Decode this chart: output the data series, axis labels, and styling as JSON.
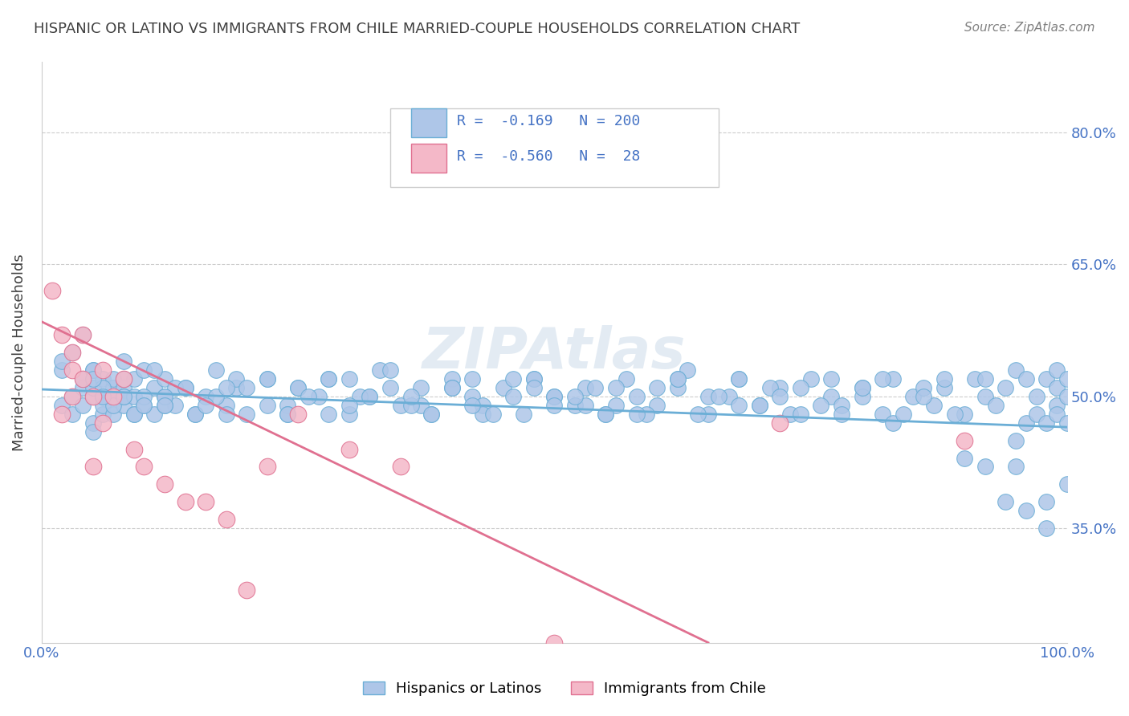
{
  "title": "HISPANIC OR LATINO VS IMMIGRANTS FROM CHILE MARRIED-COUPLE HOUSEHOLDS CORRELATION CHART",
  "source": "Source: ZipAtlas.com",
  "xlabel": "",
  "ylabel": "Married-couple Households",
  "watermark": "ZIPAtlas",
  "legend_entries": [
    {
      "label": "R =  -0.169   N = 200",
      "color_face": "#aec6e8",
      "color_edge": "#6baed6"
    },
    {
      "label": "R =  -0.560   N =  28",
      "color_face": "#f4b8c8",
      "color_edge": "#e07090"
    }
  ],
  "legend_labels_bottom": [
    "Hispanics or Latinos",
    "Immigrants from Chile"
  ],
  "blue_R": -0.169,
  "blue_N": 200,
  "pink_R": -0.56,
  "pink_N": 28,
  "xlim": [
    0,
    1
  ],
  "ylim": [
    0.22,
    0.88
  ],
  "yticks": [
    0.35,
    0.5,
    0.65,
    0.8
  ],
  "ytick_labels": [
    "35.0%",
    "50.0%",
    "65.0%",
    "80.0%"
  ],
  "xticks": [
    0.0,
    1.0
  ],
  "xtick_labels": [
    "0.0%",
    "100.0%"
  ],
  "blue_scatter_x": [
    0.02,
    0.03,
    0.03,
    0.04,
    0.04,
    0.04,
    0.05,
    0.05,
    0.05,
    0.05,
    0.06,
    0.06,
    0.06,
    0.06,
    0.07,
    0.07,
    0.07,
    0.07,
    0.08,
    0.08,
    0.08,
    0.09,
    0.09,
    0.09,
    0.1,
    0.1,
    0.11,
    0.11,
    0.12,
    0.12,
    0.13,
    0.14,
    0.15,
    0.16,
    0.17,
    0.18,
    0.19,
    0.2,
    0.22,
    0.24,
    0.25,
    0.27,
    0.28,
    0.3,
    0.32,
    0.33,
    0.35,
    0.37,
    0.38,
    0.4,
    0.42,
    0.43,
    0.45,
    0.47,
    0.48,
    0.5,
    0.52,
    0.53,
    0.55,
    0.57,
    0.58,
    0.6,
    0.62,
    0.63,
    0.65,
    0.67,
    0.68,
    0.7,
    0.72,
    0.73,
    0.75,
    0.77,
    0.78,
    0.8,
    0.82,
    0.83,
    0.85,
    0.87,
    0.88,
    0.9,
    0.91,
    0.92,
    0.93,
    0.94,
    0.95,
    0.95,
    0.96,
    0.96,
    0.97,
    0.97,
    0.98,
    0.98,
    0.99,
    0.99,
    0.99,
    0.99,
    1.0,
    1.0,
    1.0,
    1.0,
    0.03,
    0.05,
    0.05,
    0.06,
    0.07,
    0.08,
    0.09,
    0.1,
    0.11,
    0.12,
    0.13,
    0.15,
    0.17,
    0.19,
    0.22,
    0.25,
    0.28,
    0.31,
    0.34,
    0.37,
    0.4,
    0.43,
    0.46,
    0.5,
    0.53,
    0.56,
    0.59,
    0.62,
    0.65,
    0.68,
    0.71,
    0.74,
    0.77,
    0.8,
    0.83,
    0.86,
    0.89,
    0.92,
    0.95,
    0.98,
    0.04,
    0.08,
    0.12,
    0.16,
    0.2,
    0.24,
    0.28,
    0.32,
    0.36,
    0.4,
    0.44,
    0.48,
    0.52,
    0.56,
    0.6,
    0.64,
    0.68,
    0.72,
    0.76,
    0.8,
    0.84,
    0.88,
    0.92,
    0.96,
    0.02,
    0.06,
    0.1,
    0.14,
    0.18,
    0.22,
    0.26,
    0.3,
    0.34,
    0.38,
    0.42,
    0.46,
    0.5,
    0.54,
    0.58,
    0.62,
    0.66,
    0.7,
    0.74,
    0.78,
    0.82,
    0.86,
    0.9,
    0.94,
    0.98,
    0.02,
    0.05,
    0.08,
    0.12,
    0.18,
    0.24,
    0.3,
    0.36,
    0.42,
    0.48,
    0.55
  ],
  "blue_scatter_y": [
    0.49,
    0.5,
    0.48,
    0.51,
    0.49,
    0.52,
    0.5,
    0.47,
    0.51,
    0.53,
    0.48,
    0.5,
    0.52,
    0.49,
    0.51,
    0.48,
    0.5,
    0.52,
    0.49,
    0.51,
    0.5,
    0.52,
    0.48,
    0.5,
    0.53,
    0.49,
    0.51,
    0.48,
    0.5,
    0.52,
    0.49,
    0.51,
    0.48,
    0.5,
    0.53,
    0.49,
    0.51,
    0.48,
    0.52,
    0.49,
    0.51,
    0.5,
    0.52,
    0.48,
    0.5,
    0.53,
    0.49,
    0.51,
    0.48,
    0.52,
    0.5,
    0.49,
    0.51,
    0.48,
    0.52,
    0.5,
    0.49,
    0.51,
    0.48,
    0.52,
    0.5,
    0.49,
    0.51,
    0.53,
    0.48,
    0.5,
    0.52,
    0.49,
    0.51,
    0.48,
    0.52,
    0.5,
    0.49,
    0.51,
    0.48,
    0.52,
    0.5,
    0.49,
    0.51,
    0.48,
    0.52,
    0.5,
    0.49,
    0.51,
    0.45,
    0.53,
    0.47,
    0.52,
    0.48,
    0.5,
    0.47,
    0.52,
    0.49,
    0.51,
    0.48,
    0.53,
    0.5,
    0.47,
    0.52,
    0.4,
    0.55,
    0.46,
    0.53,
    0.51,
    0.49,
    0.52,
    0.48,
    0.5,
    0.53,
    0.49,
    0.51,
    0.48,
    0.5,
    0.52,
    0.49,
    0.51,
    0.48,
    0.5,
    0.53,
    0.49,
    0.51,
    0.48,
    0.52,
    0.5,
    0.49,
    0.51,
    0.48,
    0.52,
    0.5,
    0.49,
    0.51,
    0.48,
    0.52,
    0.5,
    0.47,
    0.51,
    0.48,
    0.52,
    0.42,
    0.38,
    0.57,
    0.54,
    0.5,
    0.49,
    0.51,
    0.48,
    0.52,
    0.5,
    0.49,
    0.51,
    0.48,
    0.52,
    0.5,
    0.49,
    0.51,
    0.48,
    0.52,
    0.5,
    0.49,
    0.51,
    0.48,
    0.52,
    0.42,
    0.37,
    0.53,
    0.5,
    0.49,
    0.51,
    0.48,
    0.52,
    0.5,
    0.49,
    0.51,
    0.48,
    0.52,
    0.5,
    0.49,
    0.51,
    0.48,
    0.52,
    0.5,
    0.49,
    0.51,
    0.48,
    0.52,
    0.5,
    0.43,
    0.38,
    0.35,
    0.54,
    0.52,
    0.5,
    0.49,
    0.51,
    0.48,
    0.52,
    0.5,
    0.49,
    0.51,
    0.48
  ],
  "pink_scatter_x": [
    0.01,
    0.02,
    0.02,
    0.03,
    0.03,
    0.03,
    0.04,
    0.04,
    0.05,
    0.05,
    0.06,
    0.06,
    0.07,
    0.08,
    0.09,
    0.1,
    0.12,
    0.14,
    0.16,
    0.18,
    0.2,
    0.22,
    0.25,
    0.3,
    0.35,
    0.5,
    0.72,
    0.9
  ],
  "pink_scatter_y": [
    0.62,
    0.57,
    0.48,
    0.55,
    0.53,
    0.5,
    0.57,
    0.52,
    0.5,
    0.42,
    0.53,
    0.47,
    0.5,
    0.52,
    0.44,
    0.42,
    0.4,
    0.38,
    0.38,
    0.36,
    0.28,
    0.42,
    0.48,
    0.44,
    0.42,
    0.22,
    0.47,
    0.45
  ],
  "blue_line_x": [
    0.0,
    1.0
  ],
  "blue_line_y_start": 0.508,
  "blue_line_y_end": 0.465,
  "pink_line_x": [
    0.0,
    0.65
  ],
  "pink_line_y_start": 0.585,
  "pink_line_y_end": 0.22,
  "grid_color": "#cccccc",
  "blue_color": "#6baed6",
  "blue_face": "#aec6e8",
  "pink_color": "#e07090",
  "pink_face": "#f4b8c8",
  "watermark_color": "#c8d8e8",
  "title_color": "#404040",
  "axis_color": "#606060",
  "tick_color": "#4472c4"
}
